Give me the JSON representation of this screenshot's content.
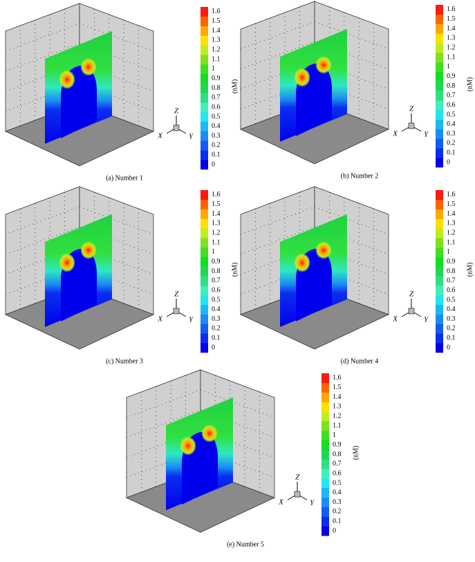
{
  "colorbar": {
    "ticks": [
      0,
      0.1,
      0.2,
      0.3,
      0.4,
      0.5,
      0.6,
      0.7,
      0.8,
      0.9,
      1,
      1.1,
      1.2,
      1.3,
      1.4,
      1.5,
      1.6
    ],
    "colors": [
      "#0000ee",
      "#0a2ef0",
      "#145cf2",
      "#1a8cf5",
      "#1ab8f5",
      "#20e6f0",
      "#40f0b8",
      "#30e080",
      "#20d850",
      "#10e020",
      "#40e020",
      "#80e020",
      "#c0ec20",
      "#ffe000",
      "#ffa800",
      "#ff6400",
      "#ff1a10"
    ],
    "unit": "(nM)"
  },
  "axes_labels": {
    "x": "X",
    "y": "Y",
    "z": "Z"
  },
  "panels": [
    {
      "caption": "(a)  Number 1"
    },
    {
      "caption": "(b)  Number 2"
    },
    {
      "caption": "(c)  Number 3"
    },
    {
      "caption": "(d)  Number 4"
    },
    {
      "caption": "(e)  Number 5"
    }
  ]
}
